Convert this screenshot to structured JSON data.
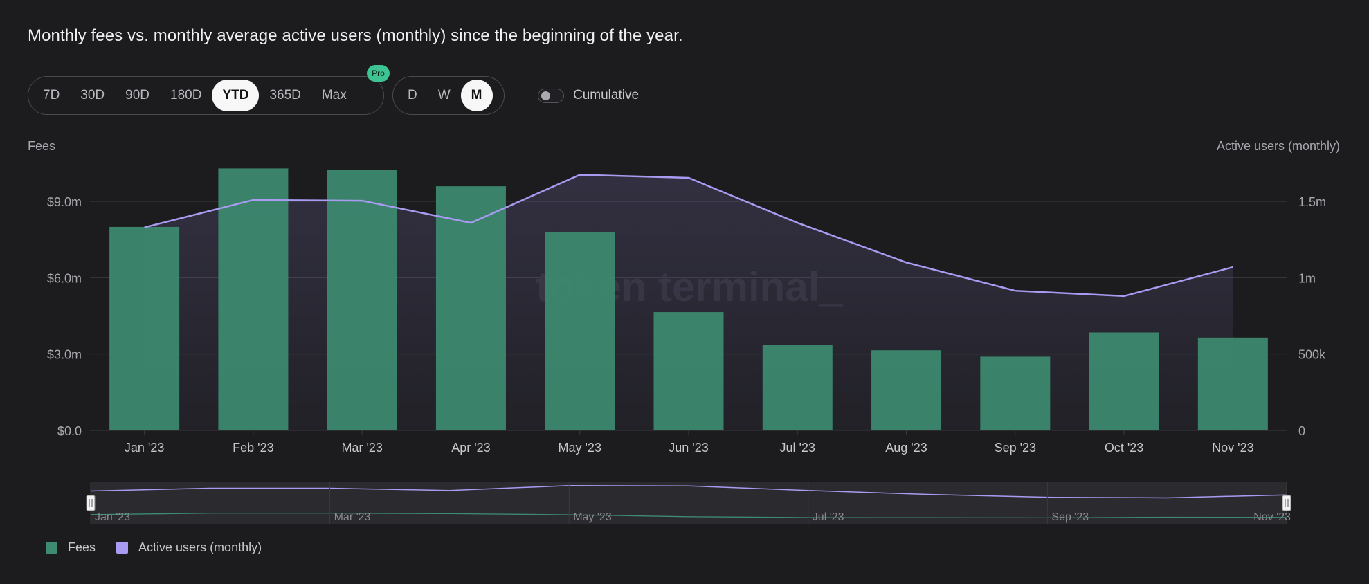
{
  "title": "Monthly fees vs. monthly average active users (monthly) since the beginning of the year.",
  "range_tabs": [
    {
      "label": "7D",
      "active": false
    },
    {
      "label": "30D",
      "active": false
    },
    {
      "label": "90D",
      "active": false
    },
    {
      "label": "180D",
      "active": false
    },
    {
      "label": "YTD",
      "active": true
    },
    {
      "label": "365D",
      "active": false
    },
    {
      "label": "Max",
      "active": false
    }
  ],
  "pro_badge": "Pro",
  "granularity_tabs": [
    {
      "label": "D",
      "active": false
    },
    {
      "label": "W",
      "active": false
    },
    {
      "label": "M",
      "active": true
    }
  ],
  "cumulative": {
    "label": "Cumulative",
    "on": false
  },
  "watermark": "token terminal_",
  "colors": {
    "fees": "#3d8b70",
    "users": "#a99bf2",
    "background": "#1c1c1f"
  },
  "chart_data": {
    "type": "bar+line",
    "categories": [
      "Jan '23",
      "Feb '23",
      "Mar '23",
      "Apr '23",
      "May '23",
      "Jun '23",
      "Jul '23",
      "Aug '23",
      "Sep '23",
      "Oct '23",
      "Nov '23"
    ],
    "series": [
      {
        "name": "Fees",
        "type": "bar",
        "axis": "left",
        "values": [
          8.0,
          10.3,
          10.25,
          9.6,
          7.8,
          4.65,
          3.35,
          3.15,
          2.9,
          3.85,
          3.65
        ]
      },
      {
        "name": "Active users (monthly)",
        "type": "line",
        "axis": "right",
        "values": [
          1330000,
          1510000,
          1505000,
          1360000,
          1675000,
          1655000,
          1360000,
          1100000,
          915000,
          880000,
          1070000
        ]
      }
    ],
    "left_axis": {
      "label": "Fees",
      "ticks": [
        "$0.0",
        "$3.0m",
        "$6.0m",
        "$9.0m"
      ],
      "tick_values": [
        0,
        3,
        6,
        9
      ],
      "range": [
        0,
        10.8
      ]
    },
    "right_axis": {
      "label": "Active users (monthly)",
      "ticks": [
        "0",
        "500k",
        "1m",
        "1.5m"
      ],
      "tick_values": [
        0,
        500000,
        1000000,
        1500000
      ],
      "range": [
        0,
        1800000
      ]
    },
    "navigator_labels": [
      "Jan '23",
      "Mar '23",
      "May '23",
      "Jul '23",
      "Sep '23",
      "Nov '23"
    ],
    "grid": true,
    "legend": {
      "position": "bottom-left"
    }
  }
}
